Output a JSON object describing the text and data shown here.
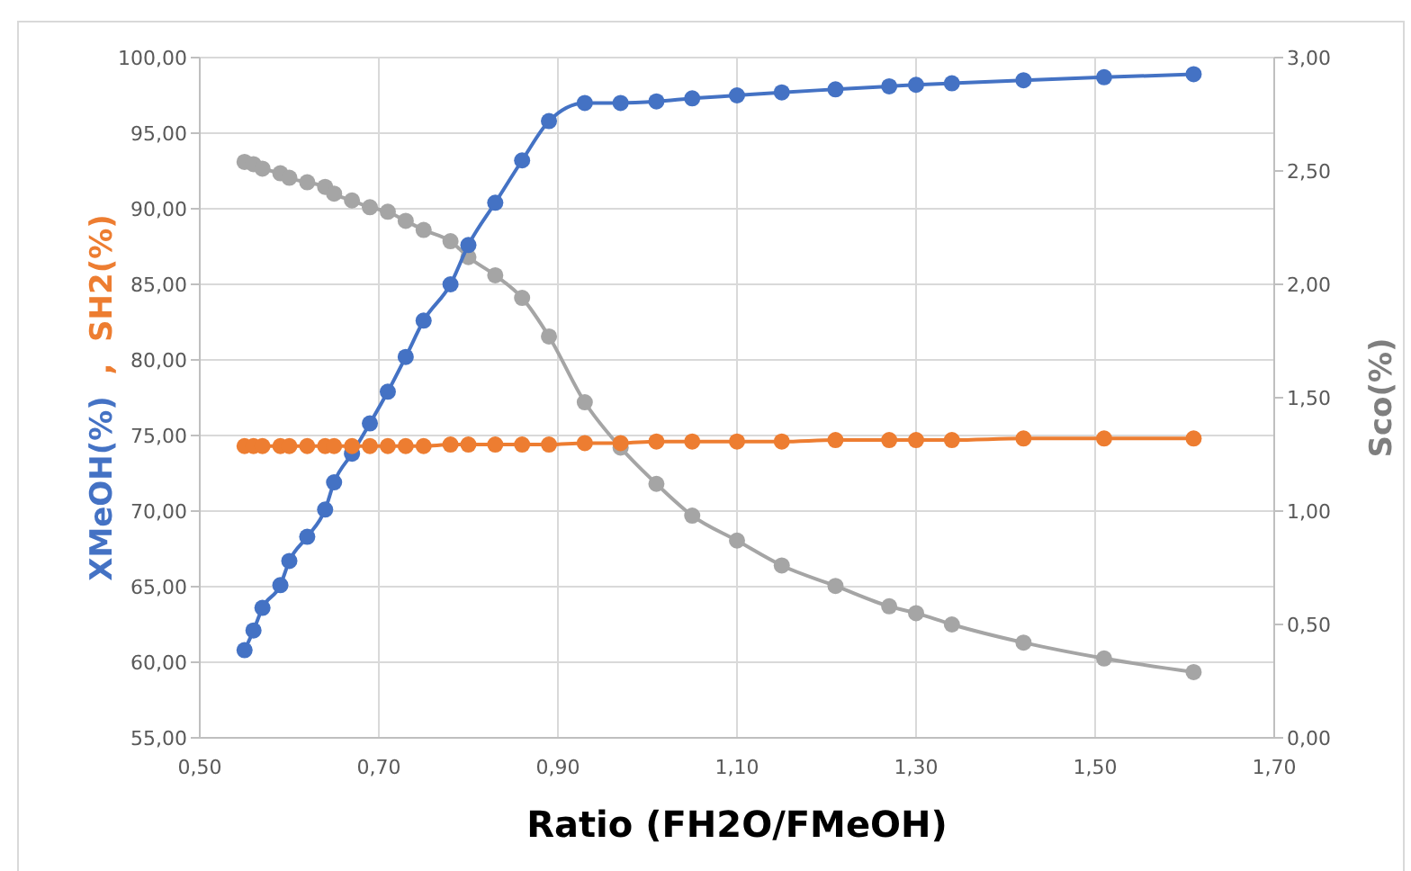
{
  "chart_data": {
    "type": "line",
    "xlabel": "Ratio (FH2O/FMeOH)",
    "ylabel": "XMeOH(%)  ,  SH2(%)",
    "y2label": "Sco(%)",
    "x": [
      0.55,
      0.56,
      0.57,
      0.59,
      0.6,
      0.62,
      0.64,
      0.65,
      0.67,
      0.69,
      0.71,
      0.73,
      0.75,
      0.78,
      0.8,
      0.83,
      0.86,
      0.89,
      0.93,
      0.97,
      1.01,
      1.05,
      1.1,
      1.15,
      1.21,
      1.27,
      1.3,
      1.34,
      1.42,
      1.51,
      1.61
    ],
    "series": [
      {
        "color": "#4472c4",
        "values": [
          60.8,
          62.1,
          63.6,
          65.1,
          66.7,
          68.3,
          70.1,
          71.9,
          73.8,
          75.8,
          77.9,
          80.2,
          82.6,
          85.0,
          87.6,
          90.4,
          93.2,
          95.8,
          97.0,
          97.0,
          97.1,
          97.3,
          97.5,
          97.7,
          97.9,
          98.1,
          98.2,
          98.3,
          98.5,
          98.7,
          98.9
        ]
      },
      {
        "color": "#ed7d31",
        "values": [
          74.3,
          74.3,
          74.3,
          74.3,
          74.3,
          74.3,
          74.3,
          74.3,
          74.3,
          74.3,
          74.3,
          74.3,
          74.3,
          74.4,
          74.4,
          74.4,
          74.4,
          74.4,
          74.5,
          74.5,
          74.6,
          74.6,
          74.6,
          74.6,
          74.7,
          74.7,
          74.7,
          74.7,
          74.8,
          74.8,
          74.8
        ]
      },
      {
        "color": "#a5a5a5",
        "axis": "y2",
        "values": [
          2.54,
          2.53,
          2.51,
          2.49,
          2.47,
          2.45,
          2.43,
          2.4,
          2.37,
          2.34,
          2.32,
          2.28,
          2.24,
          2.19,
          2.12,
          2.04,
          1.94,
          1.77,
          1.48,
          1.28,
          1.12,
          0.98,
          0.87,
          0.76,
          0.67,
          0.58,
          0.55,
          0.5,
          0.42,
          0.35,
          0.29
        ]
      }
    ],
    "xlim": [
      0.5,
      1.7
    ],
    "xticks": [
      {
        "value": 0.5,
        "label": "0,50"
      },
      {
        "value": 0.7,
        "label": "0,70"
      },
      {
        "value": 0.9,
        "label": "0,90"
      },
      {
        "value": 1.1,
        "label": "1,10"
      },
      {
        "value": 1.3,
        "label": "1,30"
      },
      {
        "value": 1.5,
        "label": "1,50"
      },
      {
        "value": 1.7,
        "label": "1,70"
      }
    ],
    "ylim": [
      55,
      100
    ],
    "yticks": [
      {
        "value": 55,
        "label": "55,00"
      },
      {
        "value": 60,
        "label": "60,00"
      },
      {
        "value": 65,
        "label": "65,00"
      },
      {
        "value": 70,
        "label": "70,00"
      },
      {
        "value": 75,
        "label": "75,00"
      },
      {
        "value": 80,
        "label": "80,00"
      },
      {
        "value": 85,
        "label": "85,00"
      },
      {
        "value": 90,
        "label": "90,00"
      },
      {
        "value": 95,
        "label": "95,00"
      },
      {
        "value": 100,
        "label": "100,00"
      }
    ],
    "y2lim": [
      0,
      3
    ],
    "y2ticks": [
      {
        "value": 0,
        "label": "0,00"
      },
      {
        "value": 0.5,
        "label": "0,50"
      },
      {
        "value": 1,
        "label": "1,00"
      },
      {
        "value": 1.5,
        "label": "1,50"
      },
      {
        "value": 2,
        "label": "2,00"
      },
      {
        "value": 2.5,
        "label": "2,50"
      },
      {
        "value": 3,
        "label": "3,00"
      }
    ],
    "grid": true,
    "marker": "circle",
    "line_style": "solid"
  }
}
